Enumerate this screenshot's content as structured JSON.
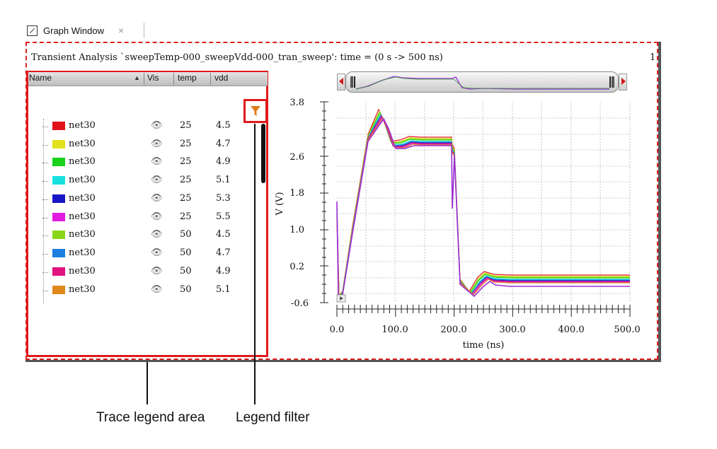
{
  "tab": {
    "label": "Graph Window",
    "close": "×"
  },
  "window": {
    "title": "Transient Analysis `sweepTemp-000_sweepVdd-000_tran_sweep': time = (0 s -> 500 ns)",
    "page": "1"
  },
  "legend": {
    "columns": {
      "name": "Name",
      "vis": "Vis",
      "temp": "temp",
      "vdd": "vdd"
    },
    "rows": [
      {
        "name": "net30",
        "temp": "25",
        "vdd": "4.5",
        "color": "#e0121b"
      },
      {
        "name": "net30",
        "temp": "25",
        "vdd": "4.7",
        "color": "#e2e21a"
      },
      {
        "name": "net30",
        "temp": "25",
        "vdd": "4.9",
        "color": "#19d219"
      },
      {
        "name": "net30",
        "temp": "25",
        "vdd": "5.1",
        "color": "#19e0e0"
      },
      {
        "name": "net30",
        "temp": "25",
        "vdd": "5.3",
        "color": "#1717c8"
      },
      {
        "name": "net30",
        "temp": "25",
        "vdd": "5.5",
        "color": "#e01be0"
      },
      {
        "name": "net30",
        "temp": "50",
        "vdd": "4.5",
        "color": "#8ad61a"
      },
      {
        "name": "net30",
        "temp": "50",
        "vdd": "4.7",
        "color": "#1c7fe0"
      },
      {
        "name": "net30",
        "temp": "50",
        "vdd": "4.9",
        "color": "#e0137f"
      },
      {
        "name": "net30",
        "temp": "50",
        "vdd": "5.1",
        "color": "#e0891a"
      }
    ],
    "vis_icon": "eye-icon",
    "filter_icon": "funnel-icon",
    "filter_color": "#e07a1a"
  },
  "plot": {
    "ylabel": "V (V)",
    "xlabel": "time (ns)",
    "yticks": [
      "3.8",
      "2.6",
      "1.8",
      "1.0",
      "0.2",
      "-0.6"
    ],
    "xticks": [
      "0.0",
      "100.0",
      "200.0",
      "300.0",
      "400.0",
      "500.0"
    ]
  },
  "annotations": {
    "legend_area": "Trace legend area",
    "legend_filter": "Legend filter"
  }
}
